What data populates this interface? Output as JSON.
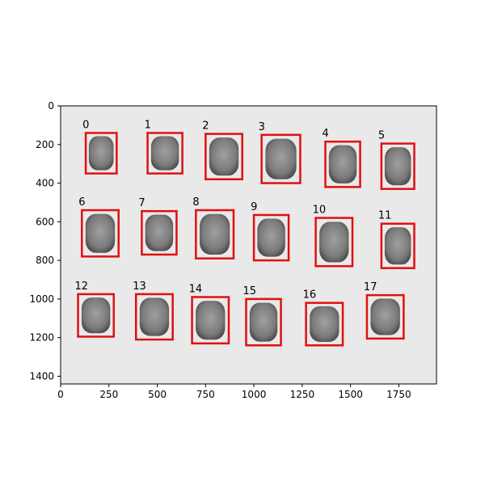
{
  "figure": {
    "background_color": "#ffffff"
  },
  "image_panel": {
    "background_color": "#e9e9e9",
    "object_color": "#7a7a7a",
    "box_color": "#e01010"
  },
  "axes": {
    "xlim": [
      0,
      1945
    ],
    "ylim": [
      1440,
      0
    ],
    "x_ticks": [
      0,
      250,
      500,
      750,
      1000,
      1250,
      1500,
      1750
    ],
    "y_ticks": [
      0,
      200,
      400,
      600,
      800,
      1000,
      1200,
      1400
    ],
    "x_tick_labels": [
      "0",
      "250",
      "500",
      "750",
      "1000",
      "1250",
      "1500",
      "1750"
    ],
    "y_tick_labels": [
      "0",
      "200",
      "400",
      "600",
      "800",
      "1000",
      "1200",
      "1400"
    ]
  },
  "detections": [
    {
      "label": "0",
      "x0": 130,
      "y0": 140,
      "x1": 290,
      "y1": 350
    },
    {
      "label": "1",
      "x0": 450,
      "y0": 140,
      "x1": 630,
      "y1": 350
    },
    {
      "label": "2",
      "x0": 750,
      "y0": 145,
      "x1": 940,
      "y1": 380
    },
    {
      "label": "3",
      "x0": 1040,
      "y0": 150,
      "x1": 1240,
      "y1": 400
    },
    {
      "label": "4",
      "x0": 1370,
      "y0": 185,
      "x1": 1550,
      "y1": 420
    },
    {
      "label": "5",
      "x0": 1660,
      "y0": 195,
      "x1": 1830,
      "y1": 430
    },
    {
      "label": "6",
      "x0": 110,
      "y0": 540,
      "x1": 300,
      "y1": 780
    },
    {
      "label": "7",
      "x0": 420,
      "y0": 545,
      "x1": 600,
      "y1": 770
    },
    {
      "label": "8",
      "x0": 700,
      "y0": 540,
      "x1": 895,
      "y1": 790
    },
    {
      "label": "9",
      "x0": 1000,
      "y0": 565,
      "x1": 1180,
      "y1": 800
    },
    {
      "label": "10",
      "x0": 1320,
      "y0": 580,
      "x1": 1510,
      "y1": 830
    },
    {
      "label": "11",
      "x0": 1660,
      "y0": 610,
      "x1": 1830,
      "y1": 840
    },
    {
      "label": "12",
      "x0": 90,
      "y0": 975,
      "x1": 275,
      "y1": 1195
    },
    {
      "label": "13",
      "x0": 390,
      "y0": 975,
      "x1": 580,
      "y1": 1210
    },
    {
      "label": "14",
      "x0": 680,
      "y0": 990,
      "x1": 870,
      "y1": 1230
    },
    {
      "label": "15",
      "x0": 960,
      "y0": 1000,
      "x1": 1140,
      "y1": 1240
    },
    {
      "label": "16",
      "x0": 1270,
      "y0": 1020,
      "x1": 1460,
      "y1": 1240
    },
    {
      "label": "17",
      "x0": 1585,
      "y0": 980,
      "x1": 1775,
      "y1": 1205
    }
  ]
}
